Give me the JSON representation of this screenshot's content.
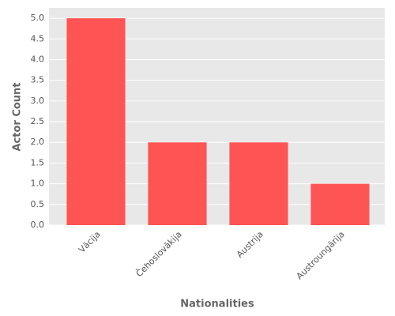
{
  "chart_data": {
    "type": "bar",
    "xlabel": "Nationalities",
    "ylabel": "Actor Count",
    "categories": [
      "Vācija",
      "Čehoslovākija",
      "Austrija",
      "Austroungārija"
    ],
    "values": [
      5,
      2,
      2,
      1
    ],
    "color": "#ff5454",
    "ylim": [
      0,
      5.25
    ],
    "yticks": [
      {
        "value": 0,
        "label": "0.0"
      },
      {
        "value": 0.5,
        "label": "0.5"
      },
      {
        "value": 1,
        "label": "1.0"
      },
      {
        "value": 1.5,
        "label": "1.5"
      },
      {
        "value": 2,
        "label": "2.0"
      },
      {
        "value": 2.5,
        "label": "2.5"
      },
      {
        "value": 3,
        "label": "3.0"
      },
      {
        "value": 3.5,
        "label": "3.5"
      },
      {
        "value": 4,
        "label": "4.0"
      },
      {
        "value": 4.5,
        "label": "4.5"
      },
      {
        "value": 5,
        "label": "5.0"
      }
    ],
    "grid": true
  }
}
